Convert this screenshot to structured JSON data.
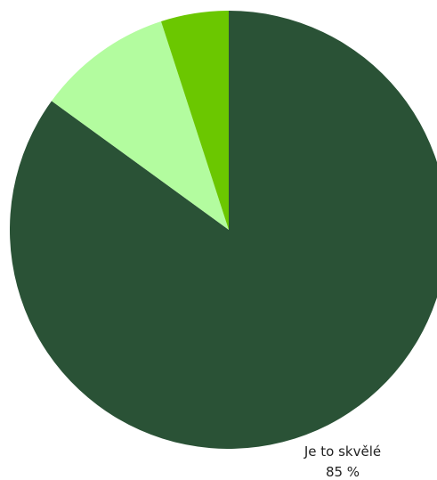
{
  "chart_data": {
    "type": "pie",
    "title": "",
    "start_angle_deg": 0,
    "direction": "clockwise",
    "slices": [
      {
        "label": "Je to skvělé",
        "value": 85,
        "value_label": "85 %",
        "color": "#2a5236",
        "show_label": true
      },
      {
        "label": "",
        "value": 10,
        "value_label": "",
        "color": "#b3fc9f",
        "show_label": false
      },
      {
        "label": "",
        "value": 5,
        "value_label": "",
        "color": "#6bc700",
        "show_label": false
      }
    ]
  }
}
